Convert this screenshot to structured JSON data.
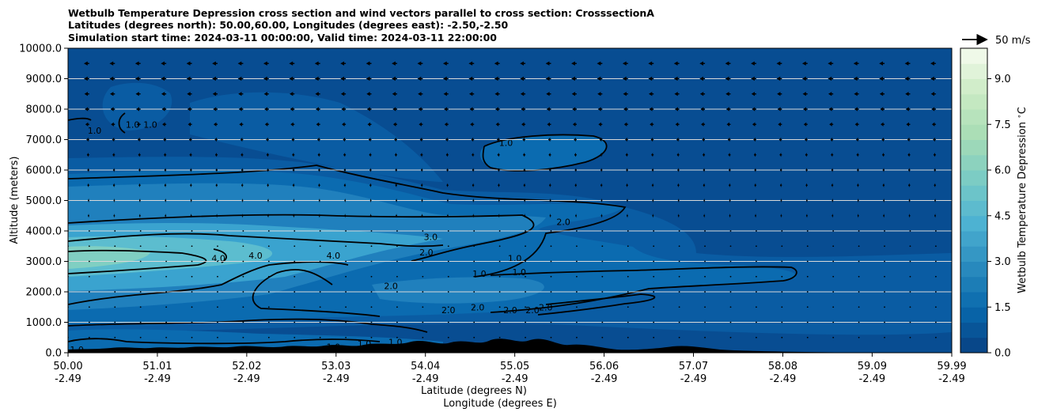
{
  "chart_data": {
    "type": "heatmap",
    "title_lines": [
      "Wetbulb Temperature Depression cross section and wind vectors parallel to cross section: CrosssectionA",
      "Latitudes (degrees north): 50.00,60.00, Longitudes (degrees east): -2.50,-2.50",
      "Simulation start time: 2024-03-11 00:00:00, Valid time: 2024-03-11 22:00:00"
    ],
    "ylabel": "Altitude (meters)",
    "xlabel_lat": "Latitude (degrees N)",
    "xlabel_lon": "Longitude (degrees E)",
    "ylim": [
      0,
      10000
    ],
    "y_ticks": [
      0,
      1000,
      2000,
      3000,
      4000,
      5000,
      6000,
      7000,
      8000,
      9000,
      10000
    ],
    "y_tick_labels": [
      "0.0",
      "1000.0",
      "2000.0",
      "3000.0",
      "4000.0",
      "5000.0",
      "6000.0",
      "7000.0",
      "8000.0",
      "9000.0",
      "10000.0"
    ],
    "xlim": [
      50.0,
      59.99
    ],
    "x_ticks": [
      50.0,
      51.01,
      52.02,
      53.03,
      54.04,
      55.05,
      56.06,
      57.07,
      58.08,
      59.09,
      59.99
    ],
    "x_tick_lat_labels": [
      "50.00",
      "51.01",
      "52.02",
      "53.03",
      "54.04",
      "55.05",
      "56.06",
      "57.07",
      "58.08",
      "59.09",
      "59.99"
    ],
    "x_tick_lon_labels": [
      "-2.49",
      "-2.49",
      "-2.49",
      "-2.49",
      "-2.49",
      "-2.49",
      "-2.49",
      "-2.49",
      "-2.49",
      "-2.49",
      "-2.49"
    ],
    "grid": "horizontal",
    "colorbar": {
      "label": "Wetbulb Temperature Depression $^\\circ$C",
      "min": 0.0,
      "max": 10.0,
      "tick_values": [
        0.0,
        1.5,
        3.0,
        4.5,
        6.0,
        7.5,
        9.0
      ],
      "tick_labels": [
        "0.0",
        "1.5",
        "3.0",
        "4.5",
        "6.0",
        "7.5",
        "9.0"
      ],
      "colormap": "GnBu_r",
      "color_stops": [
        "#084081",
        "#0868ac",
        "#2b8cbe",
        "#4eb3d3",
        "#7bccc4",
        "#a8ddb5",
        "#ccebc5",
        "#f7fcf0"
      ]
    },
    "quiver_key": {
      "label": "50 m/s",
      "speed": 50
    },
    "contour_levels": [
      1.0,
      2.0,
      3.0,
      4.0
    ],
    "contour_labels": [
      {
        "text": "1.0",
        "lat": 50.3,
        "alt": 7300
      },
      {
        "text": "1.0",
        "lat": 50.73,
        "alt": 7500
      },
      {
        "text": "1.0",
        "lat": 50.93,
        "alt": 7500
      },
      {
        "text": "1.0",
        "lat": 54.95,
        "alt": 6900
      },
      {
        "text": "2.0",
        "lat": 55.6,
        "alt": 4300
      },
      {
        "text": "3.0",
        "lat": 54.1,
        "alt": 3800
      },
      {
        "text": "2.0",
        "lat": 54.05,
        "alt": 3300
      },
      {
        "text": "1.0",
        "lat": 55.05,
        "alt": 3100
      },
      {
        "text": "1.0",
        "lat": 55.1,
        "alt": 2650
      },
      {
        "text": "1.0",
        "lat": 54.65,
        "alt": 2600
      },
      {
        "text": "4.0",
        "lat": 51.7,
        "alt": 3100
      },
      {
        "text": "4.0",
        "lat": 52.12,
        "alt": 3200
      },
      {
        "text": "4.0",
        "lat": 53.0,
        "alt": 3200
      },
      {
        "text": "2.0",
        "lat": 53.65,
        "alt": 2200
      },
      {
        "text": "2.0",
        "lat": 54.3,
        "alt": 1400
      },
      {
        "text": "2.0",
        "lat": 54.63,
        "alt": 1500
      },
      {
        "text": "2.0",
        "lat": 55.0,
        "alt": 1400
      },
      {
        "text": "2.0",
        "lat": 55.25,
        "alt": 1400
      },
      {
        "text": "2.0",
        "lat": 55.4,
        "alt": 1500
      },
      {
        "text": "1.0",
        "lat": 50.1,
        "alt": 100
      },
      {
        "text": "1.0",
        "lat": 53.0,
        "alt": 200
      },
      {
        "text": "1.0",
        "lat": 53.35,
        "alt": 300
      },
      {
        "text": "1.0",
        "lat": 53.7,
        "alt": 350
      }
    ],
    "wind_rows": [
      {
        "alt": 9500,
        "u": -11
      },
      {
        "alt": 9000,
        "u": -11
      },
      {
        "alt": 8500,
        "u": -10
      },
      {
        "alt": 8000,
        "u": -9
      },
      {
        "alt": 7500,
        "u": -8
      },
      {
        "alt": 7000,
        "u": -6
      },
      {
        "alt": 6500,
        "u": -5
      },
      {
        "alt": 6000,
        "u": -4
      },
      {
        "alt": 5500,
        "u": -4
      },
      {
        "alt": 5000,
        "u": -3
      },
      {
        "alt": 4500,
        "u": -3
      },
      {
        "alt": 4000,
        "u": -2
      },
      {
        "alt": 3500,
        "u": -2
      },
      {
        "alt": 3000,
        "u": -2
      },
      {
        "alt": 2500,
        "u": -2
      },
      {
        "alt": 2000,
        "u": -1.5
      },
      {
        "alt": 1500,
        "u": -1.5
      },
      {
        "alt": 1000,
        "u": -1
      },
      {
        "alt": 500,
        "u": -1
      }
    ],
    "wind_columns": [
      50.0,
      50.24,
      50.53,
      50.82,
      51.11,
      51.4,
      51.69,
      51.98,
      52.27,
      52.56,
      52.85,
      53.14,
      53.43,
      53.72,
      54.01,
      54.3,
      54.59,
      54.88,
      55.17,
      55.46,
      55.75,
      56.04,
      56.33,
      56.62,
      56.91,
      57.2,
      57.49,
      57.78,
      58.07,
      58.36,
      58.65,
      58.94,
      59.23,
      59.52,
      59.81
    ]
  }
}
